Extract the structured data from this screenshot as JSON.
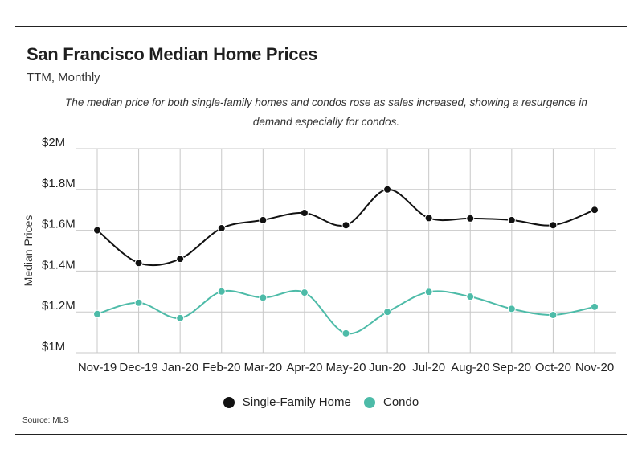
{
  "header": {
    "title": "San Francisco Median Home Prices",
    "subtitle": "TTM, Monthly",
    "note": "The median price for both single-family homes and condos rose as sales increased, showing a resurgence in demand especially for condos."
  },
  "footer": {
    "source": "Source:  MLS"
  },
  "colors": {
    "single_family": "#111111",
    "condo": "#4dbba8",
    "grid": "#c8c8c8",
    "text": "#222222"
  },
  "chart_data": {
    "type": "line",
    "title": "San Francisco Median Home Prices",
    "subtitle": "TTM, Monthly",
    "xlabel": "",
    "ylabel": "Median Prices",
    "categories": [
      "Nov-19",
      "Dec-19",
      "Jan-20",
      "Feb-20",
      "Mar-20",
      "Apr-20",
      "May-20",
      "Jun-20",
      "Jul-20",
      "Aug-20",
      "Sep-20",
      "Oct-20",
      "Nov-20"
    ],
    "ylim": [
      1000000,
      2000000
    ],
    "yticks": [
      1000000,
      1200000,
      1400000,
      1600000,
      1800000,
      2000000
    ],
    "ytick_labels": [
      "$1M",
      "$1.2M",
      "$1.4M",
      "$1.6M",
      "$1.8M",
      "$2M"
    ],
    "grid": true,
    "legend_position": "bottom",
    "series": [
      {
        "name": "Single-Family Home",
        "color": "#111111",
        "values": [
          1600000,
          1440000,
          1460000,
          1610000,
          1650000,
          1685000,
          1625000,
          1800000,
          1660000,
          1658000,
          1650000,
          1625000,
          1700000
        ]
      },
      {
        "name": "Condo",
        "color": "#4dbba8",
        "values": [
          1190000,
          1245000,
          1170000,
          1300000,
          1270000,
          1295000,
          1095000,
          1200000,
          1298000,
          1275000,
          1215000,
          1185000,
          1225000
        ]
      }
    ]
  }
}
